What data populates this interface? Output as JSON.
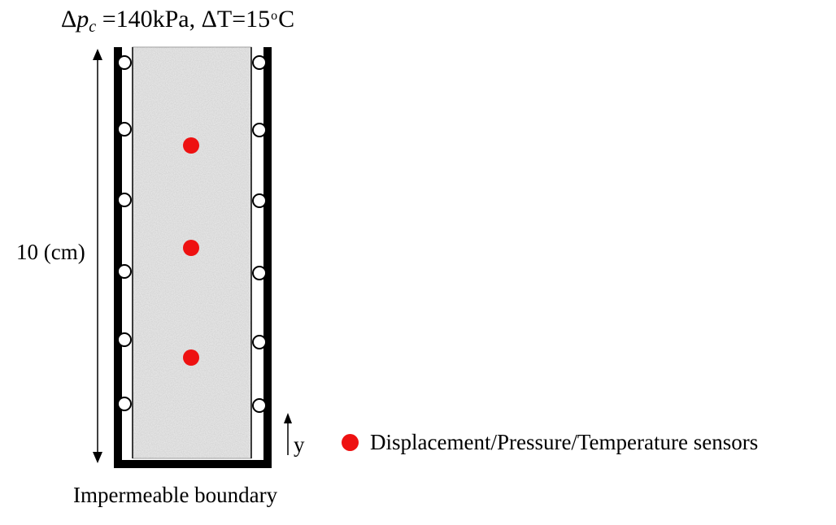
{
  "load_label": {
    "delta": "Δ",
    "p": "p",
    "sub": "c",
    "rest": " =140kPa, ΔT=15",
    "deg": "o",
    "unit": "C"
  },
  "height_label": "10 (cm)",
  "bottom_label": "Impermeable boundary",
  "axis_label": "y",
  "legend": {
    "text": "Displacement/Pressure/Temperature sensors",
    "color": "#ee1111"
  },
  "colors": {
    "wall": "#000000",
    "soil": "#e2e2e2",
    "sensor": "#ee1111"
  }
}
